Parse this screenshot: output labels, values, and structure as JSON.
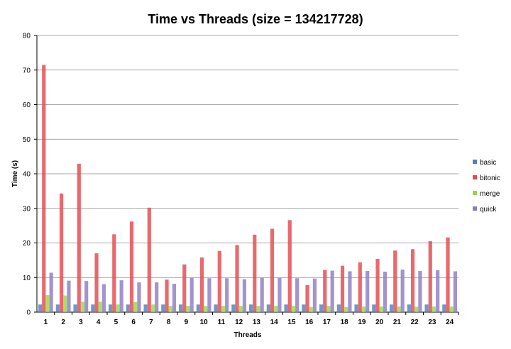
{
  "chart_data": {
    "type": "bar",
    "title": "Time vs Threads (size = 134217728)",
    "xlabel": "Threads",
    "ylabel": "Time (s)",
    "ylim": [
      0,
      80
    ],
    "yticks": [
      0,
      10,
      20,
      30,
      40,
      50,
      60,
      70,
      80
    ],
    "grid": true,
    "legend_position": "right",
    "categories": [
      "1",
      "2",
      "3",
      "4",
      "5",
      "6",
      "7",
      "8",
      "9",
      "10",
      "11",
      "12",
      "13",
      "14",
      "15",
      "16",
      "17",
      "18",
      "19",
      "20",
      "21",
      "22",
      "23",
      "24"
    ],
    "series": [
      {
        "name": "basic",
        "color": "#4f81bd",
        "values": [
          2.2,
          2.2,
          2.2,
          2.2,
          2.2,
          2.2,
          2.2,
          2.2,
          2.2,
          2.2,
          2.2,
          2.2,
          2.2,
          2.2,
          2.2,
          2.2,
          2.2,
          2.2,
          2.2,
          2.2,
          2.2,
          2.2,
          2.2,
          2.2
        ]
      },
      {
        "name": "bitonic",
        "color": "#e5484d",
        "values": [
          71.5,
          34.3,
          42.9,
          17.0,
          22.5,
          26.2,
          30.2,
          9.4,
          13.8,
          15.8,
          17.7,
          19.4,
          22.4,
          24.1,
          26.6,
          7.8,
          12.2,
          13.4,
          14.4,
          15.4,
          17.8,
          18.2,
          20.5,
          21.6
        ]
      },
      {
        "name": "merge",
        "color": "#9bd64c",
        "values": [
          4.9,
          4.8,
          3.0,
          3.0,
          2.2,
          2.9,
          2.2,
          1.8,
          1.8,
          1.8,
          1.8,
          1.8,
          1.8,
          1.8,
          1.8,
          1.5,
          1.8,
          1.5,
          1.6,
          1.6,
          1.6,
          1.6,
          1.6,
          1.6
        ]
      },
      {
        "name": "quick",
        "color": "#8e7cc3",
        "values": [
          11.4,
          9.1,
          9.0,
          8.1,
          9.2,
          8.6,
          8.6,
          8.2,
          9.9,
          9.8,
          9.8,
          9.5,
          9.9,
          9.9,
          9.8,
          9.7,
          12.0,
          11.8,
          11.9,
          11.7,
          12.3,
          11.9,
          12.1,
          11.8
        ]
      }
    ]
  }
}
